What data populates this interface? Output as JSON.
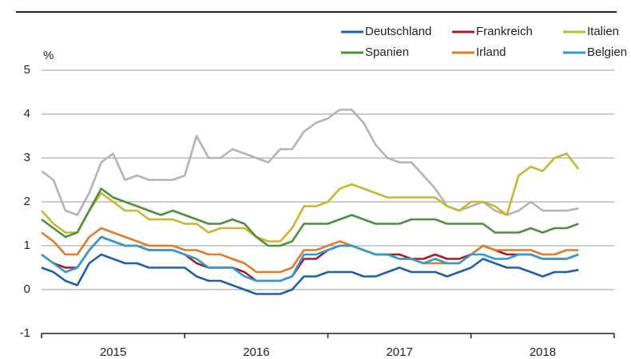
{
  "chart_data": {
    "type": "line",
    "y_unit": "%",
    "legend": "top-right",
    "grid": true,
    "xlim": [
      2015,
      2019
    ],
    "xticks": [
      2015,
      2016,
      2017,
      2018,
      2019
    ],
    "x_labels": [
      "2015",
      "2016",
      "2017",
      "2018"
    ],
    "ylim": [
      -1,
      5
    ],
    "yticks": [
      -1,
      0,
      1,
      2,
      3,
      4,
      5
    ],
    "x": [
      2015,
      2015.083,
      2015.167,
      2015.25,
      2015.333,
      2015.417,
      2015.5,
      2015.583,
      2015.667,
      2015.75,
      2015.833,
      2015.917,
      2016,
      2016.083,
      2016.167,
      2016.25,
      2016.333,
      2016.417,
      2016.5,
      2016.583,
      2016.667,
      2016.75,
      2016.833,
      2016.917,
      2017,
      2017.083,
      2017.167,
      2017.25,
      2017.333,
      2017.417,
      2017.5,
      2017.583,
      2017.667,
      2017.75,
      2017.833,
      2017.917,
      2018,
      2018.083,
      2018.167,
      2018.25,
      2018.333,
      2018.417,
      2018.5,
      2018.583,
      2018.667,
      2018.75
    ],
    "series": [
      {
        "color": "#b3b3b3",
        "values": [
          2.7,
          2.5,
          1.8,
          1.7,
          2.2,
          2.9,
          3.1,
          2.5,
          2.6,
          2.5,
          2.5,
          2.5,
          2.6,
          3.5,
          3.0,
          3.0,
          3.2,
          3.1,
          3.0,
          2.9,
          3.2,
          3.2,
          3.6,
          3.8,
          3.9,
          4.1,
          4.1,
          3.8,
          3.3,
          3.0,
          2.9,
          2.9,
          2.6,
          2.3,
          1.9,
          1.8,
          1.9,
          2.0,
          1.8,
          1.7,
          1.8,
          2.0,
          1.8,
          1.8,
          1.8,
          1.85
        ]
      },
      {
        "name": "Deutschland",
        "color": "#1f5fa8",
        "values": [
          0.5,
          0.4,
          0.2,
          0.1,
          0.6,
          0.8,
          0.7,
          0.6,
          0.6,
          0.5,
          0.5,
          0.5,
          0.5,
          0.3,
          0.2,
          0.2,
          0.1,
          0.0,
          -0.1,
          -0.1,
          -0.1,
          0.0,
          0.3,
          0.3,
          0.4,
          0.4,
          0.4,
          0.3,
          0.3,
          0.4,
          0.5,
          0.4,
          0.4,
          0.4,
          0.3,
          0.4,
          0.5,
          0.7,
          0.6,
          0.5,
          0.5,
          0.4,
          0.3,
          0.4,
          0.4,
          0.45
        ]
      },
      {
        "name": "Frankreich",
        "color": "#a31f24",
        "values": [
          0.8,
          0.6,
          0.5,
          0.5,
          0.9,
          1.2,
          1.1,
          1.0,
          1.0,
          0.9,
          0.9,
          0.9,
          0.8,
          0.6,
          0.5,
          0.5,
          0.5,
          0.4,
          0.2,
          0.2,
          0.2,
          0.3,
          0.7,
          0.7,
          0.9,
          1.0,
          1.0,
          0.9,
          0.8,
          0.8,
          0.8,
          0.7,
          0.7,
          0.8,
          0.7,
          0.7,
          0.8,
          1.0,
          0.9,
          0.8,
          0.8,
          0.8,
          0.7,
          0.7,
          0.7,
          0.8
        ]
      },
      {
        "name": "Italien",
        "color": "#c9b62f",
        "values": [
          1.8,
          1.5,
          1.3,
          1.3,
          1.8,
          2.2,
          2.0,
          1.8,
          1.8,
          1.6,
          1.6,
          1.6,
          1.5,
          1.5,
          1.3,
          1.4,
          1.4,
          1.4,
          1.2,
          1.1,
          1.1,
          1.4,
          1.9,
          1.9,
          2.0,
          2.3,
          2.4,
          2.3,
          2.2,
          2.1,
          2.1,
          2.1,
          2.1,
          2.1,
          1.9,
          1.8,
          2.0,
          2.0,
          1.9,
          1.7,
          2.6,
          2.8,
          2.7,
          3.0,
          3.1,
          2.75
        ]
      },
      {
        "name": "Spanien",
        "color": "#4e8f3a",
        "values": [
          1.6,
          1.4,
          1.2,
          1.3,
          1.8,
          2.3,
          2.1,
          2.0,
          1.9,
          1.8,
          1.7,
          1.8,
          1.7,
          1.6,
          1.5,
          1.5,
          1.6,
          1.5,
          1.2,
          1.0,
          1.0,
          1.1,
          1.5,
          1.5,
          1.5,
          1.6,
          1.7,
          1.6,
          1.5,
          1.5,
          1.5,
          1.6,
          1.6,
          1.6,
          1.5,
          1.5,
          1.5,
          1.5,
          1.3,
          1.3,
          1.3,
          1.4,
          1.3,
          1.4,
          1.4,
          1.5
        ]
      },
      {
        "name": "Irland",
        "color": "#e07b2a",
        "values": [
          1.3,
          1.1,
          0.8,
          0.8,
          1.2,
          1.4,
          1.3,
          1.2,
          1.1,
          1.0,
          1.0,
          1.0,
          0.9,
          0.9,
          0.8,
          0.8,
          0.7,
          0.6,
          0.4,
          0.4,
          0.4,
          0.5,
          0.9,
          0.9,
          1.0,
          1.1,
          1.0,
          0.9,
          0.8,
          0.8,
          0.7,
          0.7,
          0.6,
          0.6,
          0.6,
          0.6,
          0.8,
          1.0,
          0.9,
          0.9,
          0.9,
          0.9,
          0.8,
          0.8,
          0.9,
          0.9
        ]
      },
      {
        "name": "Belgien",
        "color": "#2d9bd6",
        "values": [
          0.8,
          0.6,
          0.4,
          0.5,
          0.9,
          1.2,
          1.1,
          1.0,
          1.0,
          0.9,
          0.9,
          0.9,
          0.8,
          0.7,
          0.5,
          0.5,
          0.5,
          0.3,
          0.2,
          0.2,
          0.2,
          0.3,
          0.8,
          0.8,
          0.9,
          1.0,
          1.0,
          0.9,
          0.8,
          0.8,
          0.7,
          0.7,
          0.6,
          0.7,
          0.6,
          0.6,
          0.8,
          0.8,
          0.7,
          0.7,
          0.8,
          0.8,
          0.7,
          0.7,
          0.7,
          0.8
        ]
      }
    ]
  }
}
